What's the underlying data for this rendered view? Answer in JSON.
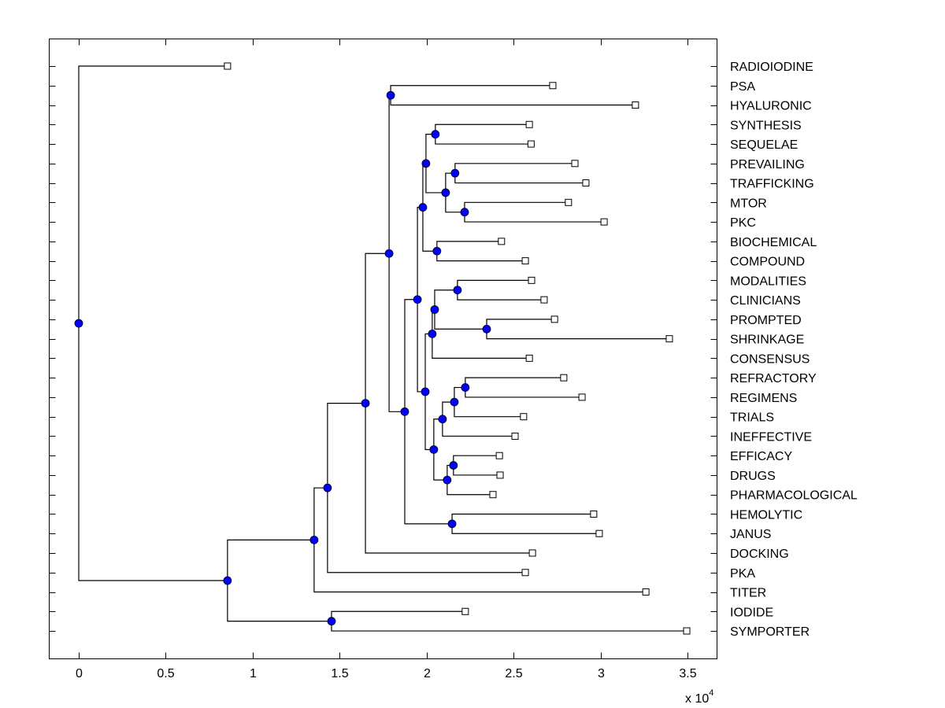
{
  "chart_data": {
    "type": "dendrogram",
    "title": "",
    "xlabel": "",
    "ylabel": "",
    "x_multiplier_label": "x 10",
    "x_multiplier_exponent": "4",
    "xlim": [
      -0.17,
      3.67
    ],
    "x_ticks": [
      0,
      0.5,
      1,
      1.5,
      2,
      2.5,
      3,
      3.5
    ],
    "x_tick_labels": [
      "0",
      "0.5",
      "1",
      "1.5",
      "2",
      "2.5",
      "3",
      "3.5"
    ],
    "grid": false,
    "node_color": "#0000ff",
    "leaves": [
      {
        "name": "RADIOIODINE",
        "x": 0.855
      },
      {
        "name": "PSA",
        "x": 2.725
      },
      {
        "name": "HYALURONIC",
        "x": 3.2
      },
      {
        "name": "SYNTHESIS",
        "x": 2.59
      },
      {
        "name": "SEQUELAE",
        "x": 2.6
      },
      {
        "name": "PREVAILING",
        "x": 2.852
      },
      {
        "name": "TRAFFICKING",
        "x": 2.915
      },
      {
        "name": "MTOR",
        "x": 2.815
      },
      {
        "name": "PKC",
        "x": 3.02
      },
      {
        "name": "BIOCHEMICAL",
        "x": 2.43
      },
      {
        "name": "COMPOUND",
        "x": 2.567
      },
      {
        "name": "MODALITIES",
        "x": 2.603
      },
      {
        "name": "CLINICIANS",
        "x": 2.675
      },
      {
        "name": "PROMPTED",
        "x": 2.735
      },
      {
        "name": "SHRINKAGE",
        "x": 3.395
      },
      {
        "name": "CONSENSUS",
        "x": 2.59
      },
      {
        "name": "REFRACTORY",
        "x": 2.788
      },
      {
        "name": "REGIMENS",
        "x": 2.893
      },
      {
        "name": "TRIALS",
        "x": 2.557
      },
      {
        "name": "INEFFECTIVE",
        "x": 2.508
      },
      {
        "name": "EFFICACY",
        "x": 2.418
      },
      {
        "name": "DRUGS",
        "x": 2.422
      },
      {
        "name": "PHARMACOLOGICAL",
        "x": 2.381
      },
      {
        "name": "HEMOLYTIC",
        "x": 2.96
      },
      {
        "name": "JANUS",
        "x": 2.992
      },
      {
        "name": "DOCKING",
        "x": 2.608
      },
      {
        "name": "PKA",
        "x": 2.567
      },
      {
        "name": "TITER",
        "x": 3.26
      },
      {
        "name": "IODIDE",
        "x": 2.222
      },
      {
        "name": "SYMPORTER",
        "x": 3.495
      }
    ],
    "nodes": [
      {
        "id": "root",
        "x": 0.0,
        "children": [
          "L0",
          "A"
        ]
      },
      {
        "id": "A",
        "x": 0.855,
        "children": [
          "B",
          "C"
        ]
      },
      {
        "id": "C",
        "x": 1.453,
        "children": [
          "L28",
          "L29"
        ]
      },
      {
        "id": "B",
        "x": 1.353,
        "children": [
          "D",
          "L27"
        ]
      },
      {
        "id": "D",
        "x": 1.43,
        "children": [
          "E",
          "L26"
        ]
      },
      {
        "id": "E",
        "x": 1.648,
        "children": [
          "F",
          "L25"
        ]
      },
      {
        "id": "F",
        "x": 1.784,
        "children": [
          "G",
          "H"
        ]
      },
      {
        "id": "G",
        "x": 1.793,
        "children": [
          "L1",
          "L2"
        ]
      },
      {
        "id": "H",
        "x": 1.874,
        "children": [
          "I",
          "J"
        ]
      },
      {
        "id": "J",
        "x": 2.146,
        "children": [
          "L23",
          "L24"
        ]
      },
      {
        "id": "I",
        "x": 1.947,
        "children": [
          "K",
          "L"
        ]
      },
      {
        "id": "K",
        "x": 1.978,
        "children": [
          "M",
          "N"
        ]
      },
      {
        "id": "M",
        "x": 1.996,
        "children": [
          "O",
          "P"
        ]
      },
      {
        "id": "O",
        "x": 2.05,
        "children": [
          "L3",
          "L4"
        ]
      },
      {
        "id": "P",
        "x": 2.109,
        "children": [
          "Q",
          "R"
        ]
      },
      {
        "id": "Q",
        "x": 2.163,
        "children": [
          "L5",
          "L6"
        ]
      },
      {
        "id": "R",
        "x": 2.218,
        "children": [
          "L7",
          "L8"
        ]
      },
      {
        "id": "N",
        "x": 2.059,
        "children": [
          "L9",
          "L10"
        ]
      },
      {
        "id": "L",
        "x": 1.992,
        "children": [
          "S",
          "T"
        ]
      },
      {
        "id": "S",
        "x": 2.032,
        "children": [
          "U",
          "L15"
        ]
      },
      {
        "id": "U",
        "x": 2.046,
        "children": [
          "V",
          "W"
        ]
      },
      {
        "id": "V",
        "x": 2.177,
        "children": [
          "L11",
          "L12"
        ]
      },
      {
        "id": "W",
        "x": 2.345,
        "children": [
          "L13",
          "L14"
        ]
      },
      {
        "id": "T",
        "x": 2.041,
        "children": [
          "X",
          "Y"
        ]
      },
      {
        "id": "X",
        "x": 2.091,
        "children": [
          "Z",
          "L19"
        ]
      },
      {
        "id": "Z",
        "x": 2.159,
        "children": [
          "AA",
          "L18"
        ]
      },
      {
        "id": "AA",
        "x": 2.222,
        "children": [
          "L16",
          "L17"
        ]
      },
      {
        "id": "Y",
        "x": 2.118,
        "children": [
          "AB",
          "L22"
        ]
      },
      {
        "id": "AB",
        "x": 2.154,
        "children": [
          "L20",
          "L21"
        ]
      }
    ]
  }
}
